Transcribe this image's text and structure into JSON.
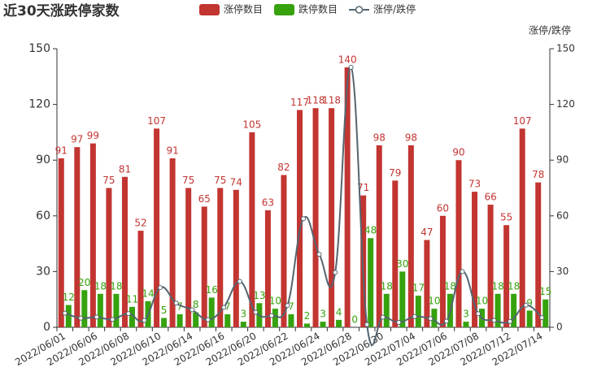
{
  "chart_data": {
    "type": "bar_line",
    "title": "近30天涨跌停家数",
    "y2_label": "涨停/跌停",
    "categories": [
      "2022/06/01",
      null,
      "2022/06/06",
      null,
      "2022/06/08",
      null,
      "2022/06/10",
      null,
      "2022/06/14",
      null,
      "2022/06/16",
      null,
      "2022/06/20",
      null,
      "2022/06/22",
      null,
      "2022/06/24",
      null,
      "2022/06/28",
      null,
      "2022/06/30",
      null,
      "2022/07/04",
      null,
      "2022/07/06",
      null,
      "2022/07/08",
      null,
      "2022/07/12",
      null,
      "2022/07/14"
    ],
    "series": [
      {
        "name": "涨停数目",
        "type": "bar",
        "color": "#c23531",
        "values": [
          91,
          97,
          99,
          75,
          81,
          52,
          107,
          91,
          75,
          65,
          75,
          74,
          105,
          63,
          82,
          117,
          118,
          118,
          140,
          71,
          98,
          79,
          98,
          47,
          60,
          90,
          73,
          66,
          55,
          107,
          78
        ]
      },
      {
        "name": "跌停数目",
        "type": "bar",
        "color": "#36a20e",
        "values": [
          12,
          20,
          18,
          18,
          11,
          14,
          5,
          7,
          8,
          16,
          7,
          3,
          13,
          10,
          7,
          2,
          3,
          4,
          0,
          48,
          18,
          30,
          17,
          10,
          18,
          3,
          10,
          18,
          18,
          9,
          15
        ]
      },
      {
        "name": "涨停/跌停",
        "type": "line",
        "axis": "y2",
        "color": "#546570",
        "values": [
          7.6,
          4.9,
          5.5,
          4.2,
          7.4,
          3.7,
          21.4,
          13,
          9.4,
          4.1,
          10.7,
          24.7,
          8.1,
          6.3,
          11.7,
          58.5,
          39.3,
          29.5,
          140,
          1.5,
          5.4,
          2.6,
          5.8,
          4.7,
          3.3,
          30,
          7.3,
          3.7,
          3.1,
          11.9,
          5.2
        ]
      }
    ],
    "ylim": [
      0,
      150
    ],
    "yticks": [
      0,
      30,
      60,
      90,
      120,
      150
    ],
    "y2lim": [
      0,
      150
    ],
    "y2ticks": [
      0,
      30,
      60,
      90,
      120,
      150
    ],
    "grid": false
  }
}
